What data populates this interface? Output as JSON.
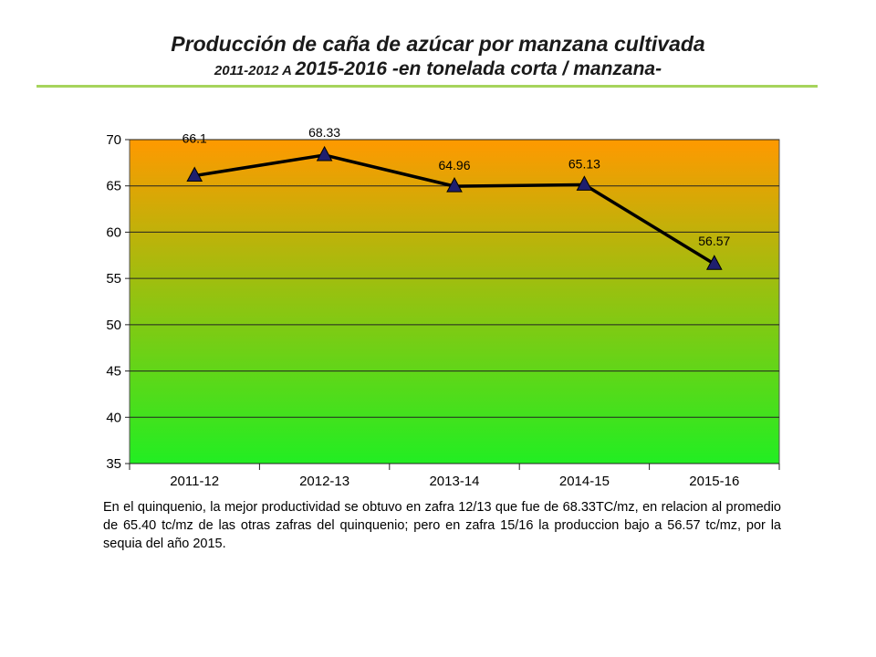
{
  "title": {
    "line1": "Producción de caña de azúcar por manzana cultivada",
    "line2_small": "2011-2012  A ",
    "line2_main": "2015-2016  -en tonelada corta / manzana-"
  },
  "chart_data": {
    "type": "line",
    "categories": [
      "2011-12",
      "2012-13",
      "2013-14",
      "2014-15",
      "2015-16"
    ],
    "series": [
      {
        "values": [
          66.1,
          68.33,
          64.96,
          65.13,
          56.57
        ]
      }
    ],
    "data_labels": [
      "66.1",
      "68.33",
      "64.96",
      "65.13",
      "56.57"
    ],
    "ylim": [
      35,
      70
    ],
    "yticks": [
      35,
      40,
      45,
      50,
      55,
      60,
      65,
      70
    ],
    "grid": true,
    "colors": {
      "line": "#000000",
      "marker": "#1f1f6e",
      "bg_top": "#ff9900",
      "bg_bottom": "#22ee22"
    }
  },
  "caption": "En el quinquenio, la mejor productividad se obtuvo en zafra 12/13 que fue de 68.33TC/mz, en relacion al promedio de 65.40 tc/mz de las otras zafras del quinquenio; pero en zafra 15/16 la produccion bajo a 56.57 tc/mz, por la sequia del año 2015."
}
